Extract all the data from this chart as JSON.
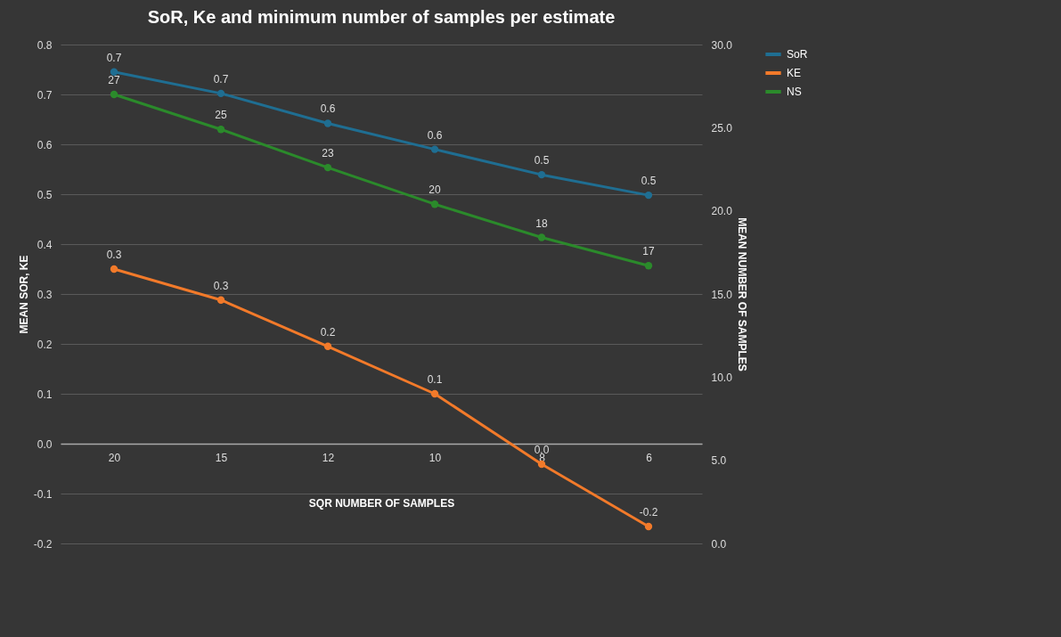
{
  "chart_data": {
    "type": "line",
    "title": "SoR, Ke and minimum number of samples per estimate",
    "xlabel": "SQR NUMBER OF SAMPLES",
    "ylabel": "MEAN SOR, KE",
    "y2label": "MEAN NUMBER OF SAMPLES",
    "categories": [
      "20",
      "15",
      "12",
      "10",
      "8",
      "6"
    ],
    "series": [
      {
        "name": "SoR",
        "color": "#1f6e92",
        "values": [
          0.745,
          0.702,
          0.642,
          0.59,
          0.539,
          0.498
        ],
        "value_labels": [
          "0.7",
          "0.7",
          "0.6",
          "0.6",
          "0.5",
          "0.5"
        ]
      },
      {
        "name": "KE",
        "color": "#f27a2a",
        "values": [
          0.35,
          0.288,
          0.195,
          0.1,
          -0.041,
          -0.166
        ],
        "value_labels": [
          "0.3",
          "0.3",
          "0.2",
          "0.1",
          "0.0",
          "-0.2"
        ]
      },
      {
        "name": "NS",
        "color": "#2b8a2b",
        "axis": "y2",
        "values": [
          27.0,
          24.9,
          22.6,
          20.4,
          18.4,
          16.7
        ],
        "value_labels": [
          "27",
          "25",
          "23",
          "20",
          "18",
          "17"
        ]
      }
    ],
    "ylim": [
      -0.2,
      0.8
    ],
    "yticks": [
      {
        "value": -0.2,
        "label": "-0.2"
      },
      {
        "value": -0.1,
        "label": "-0.1"
      },
      {
        "value": 0,
        "label": "0.0"
      },
      0.1,
      0.2,
      0.3,
      0.4,
      0.5,
      0.6,
      0.7,
      0.8
    ],
    "y2lim": [
      0,
      30
    ],
    "y2ticks": [
      {
        "value": 0,
        "label": "0.0"
      },
      {
        "value": 5,
        "label": "5.0"
      },
      {
        "value": 10,
        "label": "10.0"
      },
      {
        "value": 15,
        "label": "15.0"
      },
      {
        "value": 20,
        "label": "20.0"
      },
      {
        "value": 25,
        "label": "25.0"
      },
      {
        "value": 30,
        "label": "30.0"
      }
    ],
    "grid": "y",
    "legend": "right",
    "marker": "circle",
    "line_style": "solid"
  }
}
